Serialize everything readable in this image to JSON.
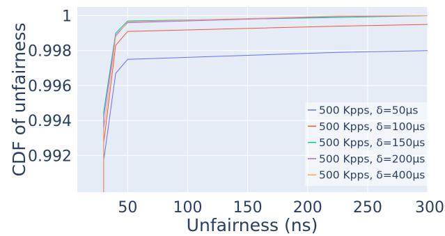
{
  "chart_data": {
    "type": "line",
    "title": "",
    "xlabel": "Unfairness (ns)",
    "ylabel": "CDF of unfairness",
    "xlim": [
      8,
      300
    ],
    "ylim": [
      0.9899,
      1.0005
    ],
    "xticks": [
      50,
      100,
      150,
      200,
      250,
      300
    ],
    "xtick_labels": [
      "50",
      "100",
      "150",
      "200",
      "250",
      "300"
    ],
    "yticks": [
      0.992,
      0.994,
      0.996,
      0.998,
      1
    ],
    "ytick_labels": [
      "0.992",
      "0.994",
      "0.996",
      "0.998",
      "1"
    ],
    "grid": true,
    "legend_position": "bottom-right",
    "plot_background": "#e5ecf6",
    "series": [
      {
        "name": "500 Kpps, δ=50μs",
        "color": "#636efa",
        "x": [
          30,
          30,
          40,
          50,
          225,
          300
        ],
        "y": [
          0.9899,
          0.9917,
          0.9967,
          0.9975,
          0.9979,
          0.998
        ]
      },
      {
        "name": "500 Kpps, δ=100μs",
        "color": "#ef553b",
        "x": [
          30,
          30,
          40,
          50,
          225,
          300
        ],
        "y": [
          0.9899,
          0.9927,
          0.9983,
          0.9991,
          0.9994,
          0.9995
        ]
      },
      {
        "name": "500 Kpps, δ=150μs",
        "color": "#00cc96",
        "x": [
          30,
          30,
          40,
          50,
          225,
          300
        ],
        "y": [
          0.9899,
          0.9945,
          0.999,
          0.9997,
          0.9999,
          1.0
        ]
      },
      {
        "name": "500 Kpps, δ=200μs",
        "color": "#ab63fa",
        "x": [
          30,
          30,
          40,
          50,
          225,
          300
        ],
        "y": [
          0.9899,
          0.9942,
          0.9989,
          0.9996,
          0.99995,
          1.0
        ]
      },
      {
        "name": "500 Kpps, δ=400μs",
        "color": "#ffa15a",
        "x": [
          30,
          30,
          40,
          50,
          225,
          300
        ],
        "y": [
          0.9899,
          0.9935,
          0.9988,
          0.99965,
          0.99998,
          1.0
        ]
      }
    ]
  }
}
